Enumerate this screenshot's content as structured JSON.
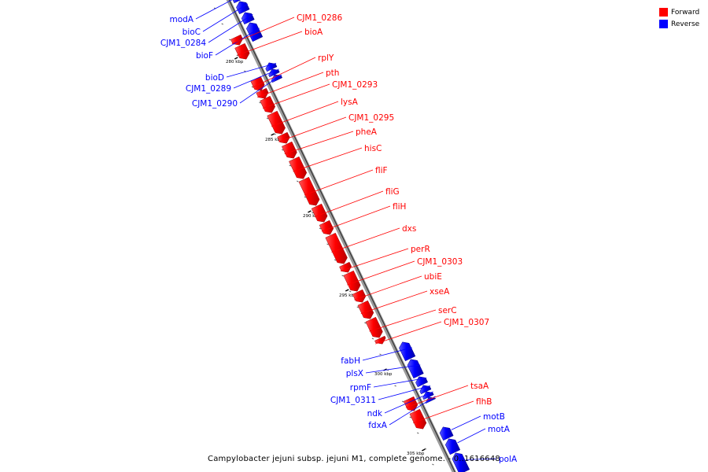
{
  "legend": {
    "forward_label": "Forward",
    "reverse_label": "Reverse",
    "forward_color": "#ff0000",
    "reverse_color": "#0000ff"
  },
  "caption": "Campylobacter jejuni subsp. jejuni M1, complete genome. - 0..1616648",
  "ticks": [
    {
      "label": "280 kbp"
    },
    {
      "label": "285 kbp"
    },
    {
      "label": "290 kbp"
    },
    {
      "label": "295 kbp"
    },
    {
      "label": "300 kbp"
    },
    {
      "label": "305 kbp"
    }
  ],
  "genes": [
    {
      "name": "modA",
      "strand": "reverse"
    },
    {
      "name": "bioC",
      "strand": "reverse"
    },
    {
      "name": "CJM1_0284",
      "strand": "reverse"
    },
    {
      "name": "bioF",
      "strand": "reverse"
    },
    {
      "name": "CJM1_0286",
      "strand": "forward"
    },
    {
      "name": "bioA",
      "strand": "forward"
    },
    {
      "name": "bioD",
      "strand": "reverse"
    },
    {
      "name": "CJM1_0289",
      "strand": "reverse"
    },
    {
      "name": "CJM1_0290",
      "strand": "reverse"
    },
    {
      "name": "rplY",
      "strand": "forward"
    },
    {
      "name": "pth",
      "strand": "forward"
    },
    {
      "name": "CJM1_0293",
      "strand": "forward"
    },
    {
      "name": "lysA",
      "strand": "forward"
    },
    {
      "name": "CJM1_0295",
      "strand": "forward"
    },
    {
      "name": "pheA",
      "strand": "forward"
    },
    {
      "name": "hisC",
      "strand": "forward"
    },
    {
      "name": "fliF",
      "strand": "forward"
    },
    {
      "name": "fliG",
      "strand": "forward"
    },
    {
      "name": "fliH",
      "strand": "forward"
    },
    {
      "name": "dxs",
      "strand": "forward"
    },
    {
      "name": "perR",
      "strand": "forward"
    },
    {
      "name": "CJM1_0303",
      "strand": "forward"
    },
    {
      "name": "ubiE",
      "strand": "forward"
    },
    {
      "name": "xseA",
      "strand": "forward"
    },
    {
      "name": "serC",
      "strand": "forward"
    },
    {
      "name": "CJM1_0307",
      "strand": "forward"
    },
    {
      "name": "fabH",
      "strand": "reverse"
    },
    {
      "name": "plsX",
      "strand": "reverse"
    },
    {
      "name": "rpmF",
      "strand": "reverse"
    },
    {
      "name": "CJM1_0311",
      "strand": "reverse"
    },
    {
      "name": "ndk",
      "strand": "reverse"
    },
    {
      "name": "fdxA",
      "strand": "reverse"
    },
    {
      "name": "tsaA",
      "strand": "forward"
    },
    {
      "name": "flhB",
      "strand": "forward"
    },
    {
      "name": "motB",
      "strand": "reverse"
    },
    {
      "name": "motA",
      "strand": "reverse"
    },
    {
      "name": "polA",
      "strand": "reverse"
    }
  ]
}
